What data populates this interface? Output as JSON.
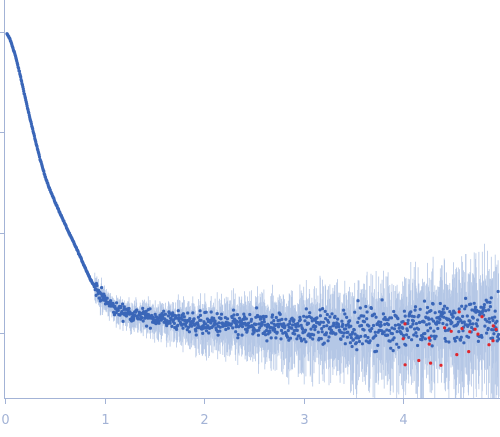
{
  "chart_data": {
    "type": "scatter",
    "title": "",
    "xlabel": "",
    "ylabel": "",
    "xlim": [
      0,
      4.97
    ],
    "ylog": true,
    "y_decades_visible": 3.65,
    "grid": false,
    "legend": "none",
    "x_ticks": [
      {
        "value": 0,
        "label": "0"
      },
      {
        "value": 1,
        "label": "1"
      },
      {
        "value": 2,
        "label": "2"
      },
      {
        "value": 3,
        "label": "3"
      },
      {
        "value": 4,
        "label": "4"
      }
    ],
    "y_ticks_unlabeled_log_decades": [
      0,
      -1,
      -2,
      -3
    ],
    "colors": {
      "points": "#3a66b8",
      "error_bars": "#b5c7e6",
      "outliers": "#e0262c",
      "axis": "#a3b3d6"
    },
    "series": [
      {
        "points_sampled_q_log10I": [
          [
            0.02,
            -0.02
          ],
          [
            0.05,
            -0.07
          ],
          [
            0.1,
            -0.22
          ],
          [
            0.15,
            -0.42
          ],
          [
            0.2,
            -0.64
          ],
          [
            0.25,
            -0.86
          ],
          [
            0.3,
            -1.06
          ],
          [
            0.35,
            -1.26
          ],
          [
            0.4,
            -1.43
          ],
          [
            0.45,
            -1.57
          ],
          [
            0.5,
            -1.69
          ],
          [
            0.55,
            -1.8
          ],
          [
            0.6,
            -1.91
          ],
          [
            0.65,
            -2.02
          ],
          [
            0.7,
            -2.12
          ],
          [
            0.75,
            -2.23
          ],
          [
            0.8,
            -2.34
          ],
          [
            0.85,
            -2.45
          ],
          [
            0.9,
            -2.54
          ],
          [
            0.95,
            -2.61
          ],
          [
            1.0,
            -2.67
          ],
          [
            1.1,
            -2.76
          ],
          [
            1.2,
            -2.79
          ],
          [
            1.4,
            -2.84
          ],
          [
            1.6,
            -2.86
          ],
          [
            1.8,
            -2.89
          ],
          [
            2.0,
            -2.91
          ],
          [
            2.4,
            -2.93
          ],
          [
            2.8,
            -2.94
          ],
          [
            3.2,
            -2.95
          ],
          [
            3.6,
            -2.95
          ],
          [
            4.0,
            -2.94
          ],
          [
            4.4,
            -2.9
          ],
          [
            4.8,
            -2.86
          ]
        ]
      }
    ]
  }
}
